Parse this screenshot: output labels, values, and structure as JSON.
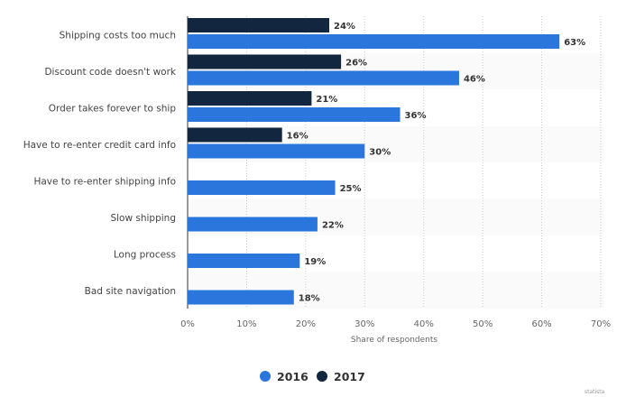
{
  "chart_data": {
    "type": "bar",
    "orientation": "horizontal",
    "categories": [
      "Shipping costs too much",
      "Discount code doesn't work",
      "Order takes forever to ship",
      "Have to re-enter credit card info",
      "Have to re-enter shipping info",
      "Slow shipping",
      "Long process",
      "Bad site navigation"
    ],
    "series": [
      {
        "name": "2016",
        "color": "#2a76dd",
        "values": [
          63,
          46,
          36,
          30,
          25,
          22,
          19,
          18
        ]
      },
      {
        "name": "2017",
        "color": "#12263f",
        "values": [
          24,
          26,
          21,
          16,
          null,
          null,
          null,
          null
        ]
      }
    ],
    "xlabel": "Share of respondents",
    "xlim": [
      0,
      70
    ],
    "xticks": [
      "0%",
      "10%",
      "20%",
      "30%",
      "40%",
      "50%",
      "60%",
      "70%"
    ],
    "value_suffix": "%",
    "grid": "vertical dotted",
    "legend_placement": "bottom",
    "watermark": "statista"
  }
}
